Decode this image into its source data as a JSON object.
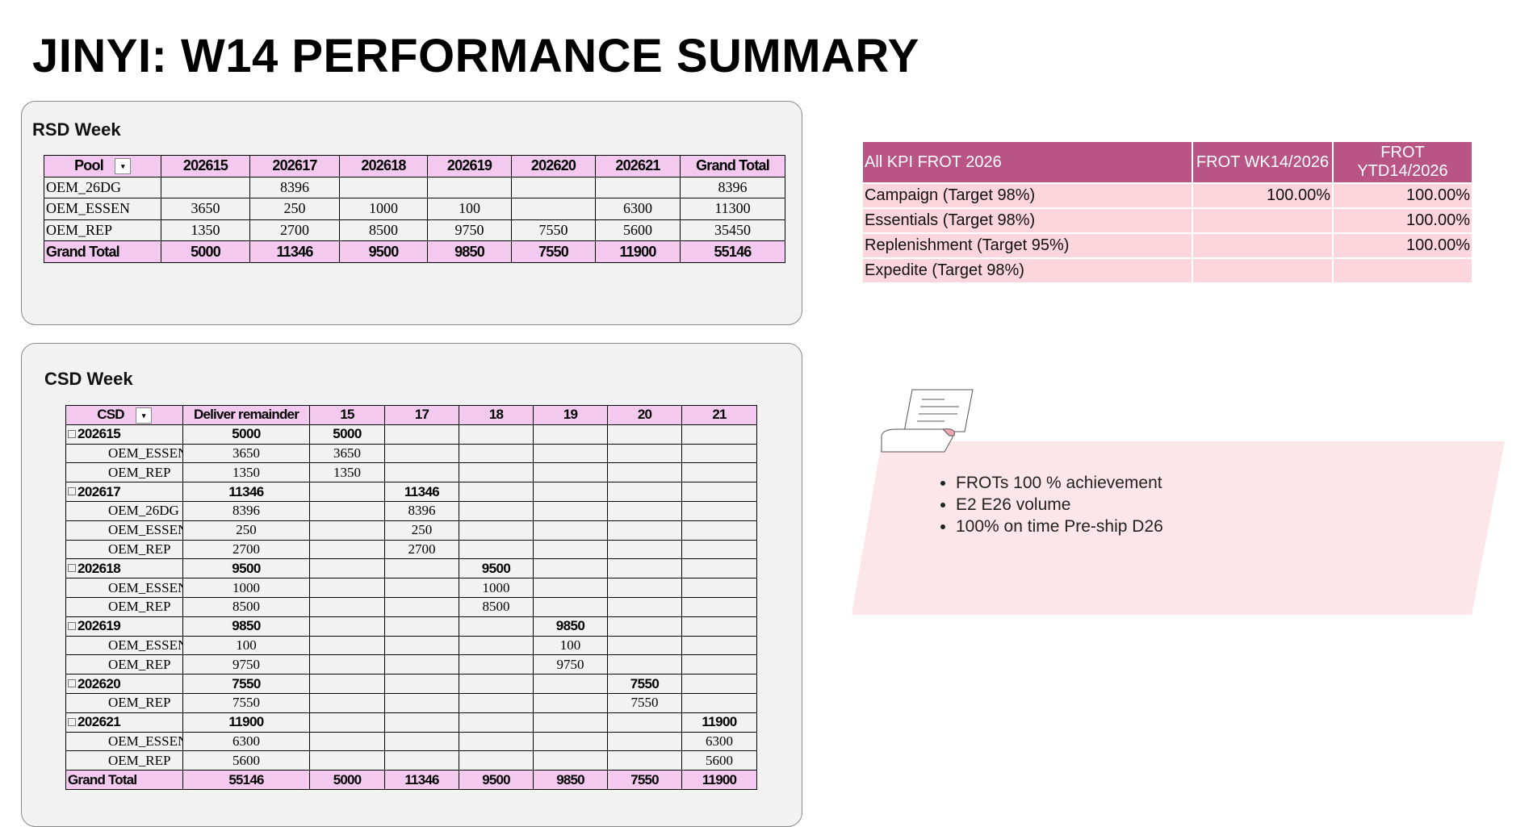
{
  "title": "JINYI: W14 PERFORMANCE SUMMARY",
  "rsd": {
    "title": "RSD Week",
    "headers": [
      "Pool",
      "202615",
      "202617",
      "202618",
      "202619",
      "202620",
      "202621",
      "Grand Total"
    ],
    "rows": [
      [
        "OEM_26DG",
        null,
        8396,
        null,
        null,
        null,
        null,
        8396
      ],
      [
        "OEM_ESSEN",
        3650,
        250,
        1000,
        100,
        null,
        6300,
        11300
      ],
      [
        "OEM_REP",
        1350,
        2700,
        8500,
        9750,
        7550,
        5600,
        35450
      ]
    ],
    "total": [
      "Grand Total",
      5000,
      11346,
      9500,
      9850,
      7550,
      11900,
      55146
    ]
  },
  "csd": {
    "title": "CSD Week",
    "headers": [
      "CSD",
      "Deliver remainder",
      "15",
      "17",
      "18",
      "19",
      "20",
      "21"
    ],
    "groups": [
      {
        "row": [
          "202615",
          5000,
          5000,
          null,
          null,
          null,
          null,
          null
        ],
        "items": [
          [
            "OEM_ESSEN",
            3650,
            3650,
            null,
            null,
            null,
            null,
            null
          ],
          [
            "OEM_REP",
            1350,
            1350,
            null,
            null,
            null,
            null,
            null
          ]
        ]
      },
      {
        "row": [
          "202617",
          11346,
          null,
          11346,
          null,
          null,
          null,
          null
        ],
        "items": [
          [
            "OEM_26DG",
            8396,
            null,
            8396,
            null,
            null,
            null,
            null
          ],
          [
            "OEM_ESSEN",
            250,
            null,
            250,
            null,
            null,
            null,
            null
          ],
          [
            "OEM_REP",
            2700,
            null,
            2700,
            null,
            null,
            null,
            null
          ]
        ]
      },
      {
        "row": [
          "202618",
          9500,
          null,
          null,
          9500,
          null,
          null,
          null
        ],
        "items": [
          [
            "OEM_ESSEN",
            1000,
            null,
            null,
            1000,
            null,
            null,
            null
          ],
          [
            "OEM_REP",
            8500,
            null,
            null,
            8500,
            null,
            null,
            null
          ]
        ]
      },
      {
        "row": [
          "202619",
          9850,
          null,
          null,
          null,
          9850,
          null,
          null
        ],
        "items": [
          [
            "OEM_ESSEN",
            100,
            null,
            null,
            null,
            100,
            null,
            null
          ],
          [
            "OEM_REP",
            9750,
            null,
            null,
            null,
            9750,
            null,
            null
          ]
        ]
      },
      {
        "row": [
          "202620",
          7550,
          null,
          null,
          null,
          null,
          7550,
          null
        ],
        "items": [
          [
            "OEM_REP",
            7550,
            null,
            null,
            null,
            null,
            7550,
            null
          ]
        ]
      },
      {
        "row": [
          "202621",
          11900,
          null,
          null,
          null,
          null,
          null,
          11900
        ],
        "items": [
          [
            "OEM_ESSEN",
            6300,
            null,
            null,
            null,
            null,
            null,
            6300
          ],
          [
            "OEM_REP",
            5600,
            null,
            null,
            null,
            null,
            null,
            5600
          ]
        ]
      }
    ],
    "total": [
      "Grand Total",
      55146,
      5000,
      11346,
      9500,
      9850,
      7550,
      11900
    ]
  },
  "kpi": {
    "headers": [
      "All KPI FROT 2026",
      "FROT WK14/2026",
      "FROT YTD14/2026"
    ],
    "rows": [
      [
        "Campaign (Target 98%)",
        "100.00%",
        "100.00%"
      ],
      [
        "Essentials (Target 98%)",
        null,
        "100.00%"
      ],
      [
        "Replenishment (Target 95%)",
        null,
        "100.00%"
      ],
      [
        "Expedite (Target 98%)",
        null,
        null
      ]
    ]
  },
  "notes": [
    "FROTs 100 % achievement",
    "E2 E26 volume",
    "100% on time Pre-ship D26"
  ]
}
